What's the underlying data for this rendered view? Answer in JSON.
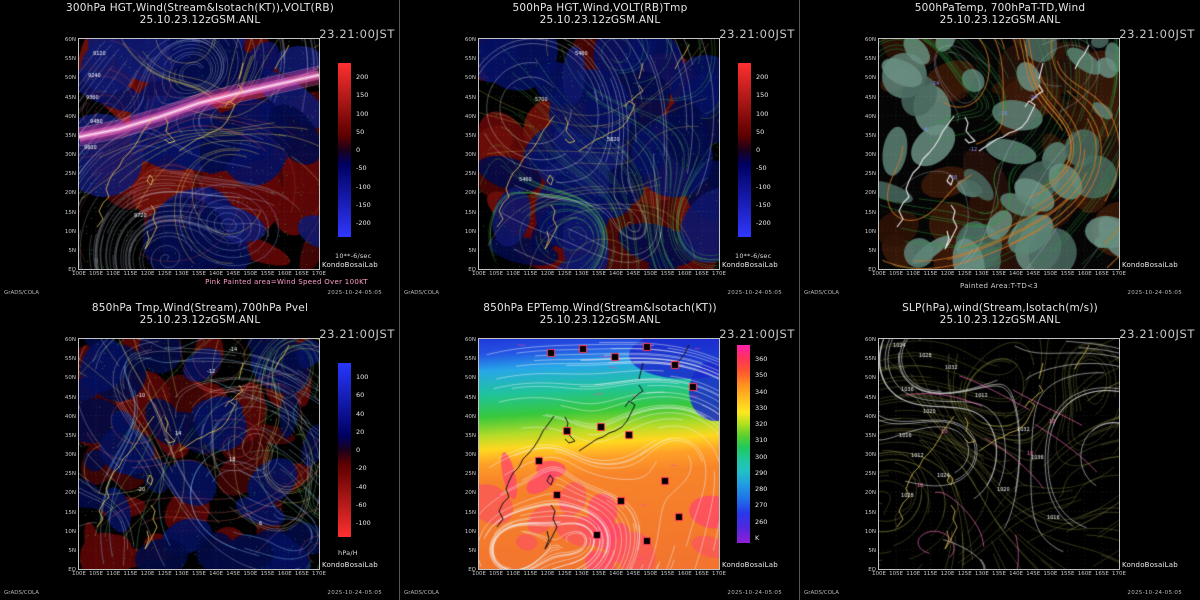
{
  "footer": {
    "credit": "GrADS/COLA",
    "date": "2025-10-24-05:05"
  },
  "axes": {
    "x_ticks": [
      "100E",
      "105E",
      "110E",
      "115E",
      "120E",
      "125E",
      "130E",
      "135E",
      "140E",
      "145E",
      "150E",
      "155E",
      "160E",
      "165E",
      "170E"
    ],
    "y_ticks": [
      "60N",
      "55N",
      "50N",
      "45N",
      "40N",
      "35N",
      "30N",
      "25N",
      "20N",
      "15N",
      "10N",
      "5N",
      "EQ"
    ]
  },
  "panels": [
    {
      "title": "300hPa HGT,Wind(Stream&Isotach(KT)),VOLT(RB)",
      "subtitle": "25.10.23.12zGSM.ANL",
      "timestamp": "23.21:00JST",
      "lab": "KondoBosaiLab",
      "unit": "10**-6/sec",
      "note": "Pink Painted area=Wind Speed Over 100KT",
      "colorbar": {
        "labels": [
          "200",
          "150",
          "100",
          "50",
          "0",
          "-50",
          "-100",
          "-150",
          "-200"
        ],
        "stops": [
          [
            0,
            "#ff3030"
          ],
          [
            0.42,
            "#5c0000"
          ],
          [
            0.5,
            "#1c001c"
          ],
          [
            0.58,
            "#000060"
          ],
          [
            1,
            "#3038ff"
          ]
        ]
      },
      "map_labels": [
        "9120",
        "9240",
        "9360",
        "9480",
        "9600",
        "9720"
      ],
      "palette": {
        "stream": "#ccd2ea",
        "contour": "#e8d058",
        "coast": "#e8c85a",
        "dots": "#3cc43c",
        "jet": "#ff50b4",
        "blob_red": "#600606",
        "blob_blue": "#041060"
      }
    },
    {
      "title": "500hPa HGT,Wind,VOLT(RB)Tmp",
      "subtitle": "25.10.23.12zGSM.ANL",
      "timestamp": "23.21:00JST",
      "lab": "KondoBosaiLab",
      "unit": "10**-6/sec",
      "colorbar": {
        "labels": [
          "200",
          "150",
          "100",
          "50",
          "0",
          "-50",
          "-100",
          "-150",
          "-200"
        ],
        "stops": [
          [
            0,
            "#ff3030"
          ],
          [
            0.42,
            "#5c0000"
          ],
          [
            0.5,
            "#1c001c"
          ],
          [
            0.58,
            "#000060"
          ],
          [
            1,
            "#3038ff"
          ]
        ]
      },
      "map_labels": [
        "5460",
        "5700",
        "5820"
      ],
      "palette": {
        "stream": "#58c858",
        "contour": "#e6e6e6",
        "coast": "#e8c85a",
        "dots": "#e8d058",
        "blob_red": "#600606",
        "blob_blue": "#041060"
      }
    },
    {
      "title": "500hPaTemp, 700hPaT-TD,Wind",
      "subtitle": "25.10.23.12zGSM.ANL",
      "timestamp": "23.21:00JST",
      "lab": "KondoBosaiLab",
      "note": "Painted Area:T-TD<3",
      "map_labels": [
        "-24",
        "-18",
        "-12",
        "-6"
      ],
      "palette": {
        "paint": "#5d8377",
        "paint2": "#49695f",
        "dark": "#2e1206",
        "contour": "#2f9e3f",
        "flow": "#d07a28",
        "coast": "#e8e8e8",
        "labels": "#8090ff"
      }
    },
    {
      "title": "850hPa Tmp,Wind(Stream),700hPa Pvel",
      "subtitle": "25.10.23.12zGSM.ANL",
      "timestamp": "23.21:00JST",
      "lab": "KondoBosaiLab",
      "unit": "hPa/H",
      "colorbar": {
        "labels": [
          "100",
          "60",
          "40",
          "20",
          "0",
          "-20",
          "-40",
          "-60",
          "-100"
        ],
        "stops": [
          [
            0,
            "#2838ff"
          ],
          [
            0.42,
            "#000060"
          ],
          [
            0.5,
            "#1c001c"
          ],
          [
            0.58,
            "#5c0000"
          ],
          [
            1,
            "#ff3030"
          ]
        ]
      },
      "map_labels": [
        "-14",
        "-12",
        "-10",
        "14",
        "18",
        "-20",
        "6"
      ],
      "palette": {
        "stream": "#dfe4ff",
        "coast": "#e8d058",
        "dots": "#3cc43c",
        "blob_red": "#560505",
        "blob_blue": "#03105c",
        "c1": "#8fd0ff",
        "c2": "#66cc66",
        "c3": "#e0d060",
        "c4": "#ff7070",
        "c5": "#e8e8e8"
      }
    },
    {
      "title": "850hPa EPTemp.Wind(Stream&Isotach(KT))",
      "subtitle": "25.10.23.12zGSM.ANL",
      "timestamp": "23.21:00JST",
      "lab": "KondoBosaiLab",
      "colorbar": {
        "labels": [
          "360",
          "350",
          "340",
          "330",
          "320",
          "310",
          "300",
          "290",
          "280",
          "270",
          "260",
          "K"
        ],
        "stops": [
          [
            0,
            "#ff20b0"
          ],
          [
            0.06,
            "#ff3060"
          ],
          [
            0.13,
            "#ff5430"
          ],
          [
            0.2,
            "#ff9020"
          ],
          [
            0.28,
            "#ffc420"
          ],
          [
            0.34,
            "#ffe820"
          ],
          [
            0.4,
            "#b0e020"
          ],
          [
            0.46,
            "#58d030"
          ],
          [
            0.52,
            "#20c860"
          ],
          [
            0.58,
            "#20c8a0"
          ],
          [
            0.64,
            "#20c0c8"
          ],
          [
            0.7,
            "#20a0e0"
          ],
          [
            0.78,
            "#2070e8"
          ],
          [
            0.85,
            "#2838e8"
          ],
          [
            0.92,
            "#5028e0"
          ],
          [
            1,
            "#9020d8"
          ]
        ]
      },
      "palette": {
        "stream": "#f4f4f4",
        "coast": "#101010",
        "marker": "#ff3858",
        "band_stops": [
          [
            0,
            "#2038d8"
          ],
          [
            0.07,
            "#2455e4"
          ],
          [
            0.14,
            "#28a8e8"
          ],
          [
            0.24,
            "#20c49a"
          ],
          [
            0.33,
            "#38c83c"
          ],
          [
            0.41,
            "#b8dc28"
          ],
          [
            0.465,
            "#ffd820"
          ],
          [
            0.525,
            "#ffa028"
          ],
          [
            0.6,
            "#f8842a"
          ],
          [
            1,
            "#f2742e"
          ]
        ],
        "warm_patch": "#fa5858",
        "cold_patch": "#1a28cc"
      }
    },
    {
      "title": "SLP(hPa),wind(Stream,Isotach(m/s))",
      "subtitle": "25.10.23.12zGSM.ANL",
      "timestamp": "23.21:00JST",
      "lab": "KondoBosaiLab",
      "map_labels": [
        "1024",
        "1028",
        "1032",
        "1036",
        "1020",
        "1016",
        "1012"
      ],
      "isotach_label": "10",
      "palette": {
        "stream": "#9a9a4a",
        "isobar": "#e2e2e2",
        "coast": "#d8c050",
        "isotach": "#ff70c0"
      }
    }
  ]
}
